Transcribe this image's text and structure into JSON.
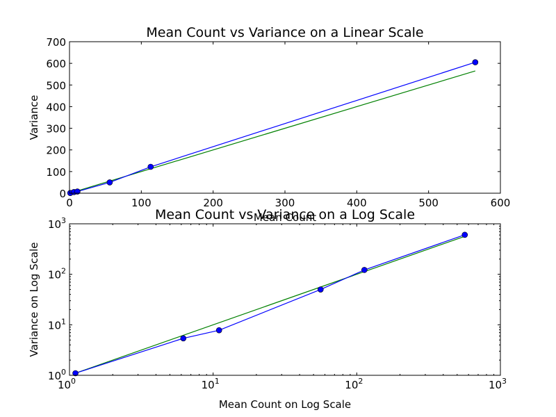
{
  "chart_data": [
    {
      "type": "line",
      "title": "Mean Count vs Variance on a Linear Scale",
      "xlabel": "Mean Count",
      "ylabel": "Variance",
      "xlim": [
        0,
        600
      ],
      "ylim": [
        0,
        700
      ],
      "xscale": "linear",
      "yscale": "linear",
      "grid": false,
      "xticks": [
        0,
        100,
        200,
        300,
        400,
        500,
        600
      ],
      "yticks": [
        0,
        100,
        200,
        300,
        400,
        500,
        600,
        700
      ],
      "series": [
        {
          "color": "#0000ff",
          "marker": "circle",
          "x": [
            1.1,
            6.2,
            11,
            56,
            113,
            565
          ],
          "y": [
            1.1,
            5.4,
            7.8,
            50,
            122,
            605
          ]
        },
        {
          "color": "#008000",
          "marker": "none",
          "x": [
            1.1,
            565
          ],
          "y": [
            1.1,
            565
          ]
        }
      ]
    },
    {
      "type": "line",
      "title": "Mean Count vs Variance on a Log Scale",
      "xlabel": "Mean Count on Log Scale",
      "ylabel": "Variance on Log Scale",
      "xlim": [
        1,
        1000
      ],
      "ylim": [
        1,
        1000
      ],
      "xscale": "log",
      "yscale": "log",
      "grid": false,
      "xticks": [
        1,
        10,
        100,
        1000
      ],
      "yticks": [
        1,
        10,
        100,
        1000
      ],
      "tick_base": "10",
      "tick_exponents": [
        "0",
        "1",
        "2",
        "3"
      ],
      "series": [
        {
          "color": "#0000ff",
          "marker": "circle",
          "x": [
            1.1,
            6.2,
            11,
            56,
            113,
            565
          ],
          "y": [
            1.1,
            5.4,
            7.8,
            50,
            122,
            605
          ]
        },
        {
          "color": "#008000",
          "marker": "none",
          "x": [
            1.1,
            565
          ],
          "y": [
            1.1,
            565
          ]
        }
      ]
    }
  ]
}
